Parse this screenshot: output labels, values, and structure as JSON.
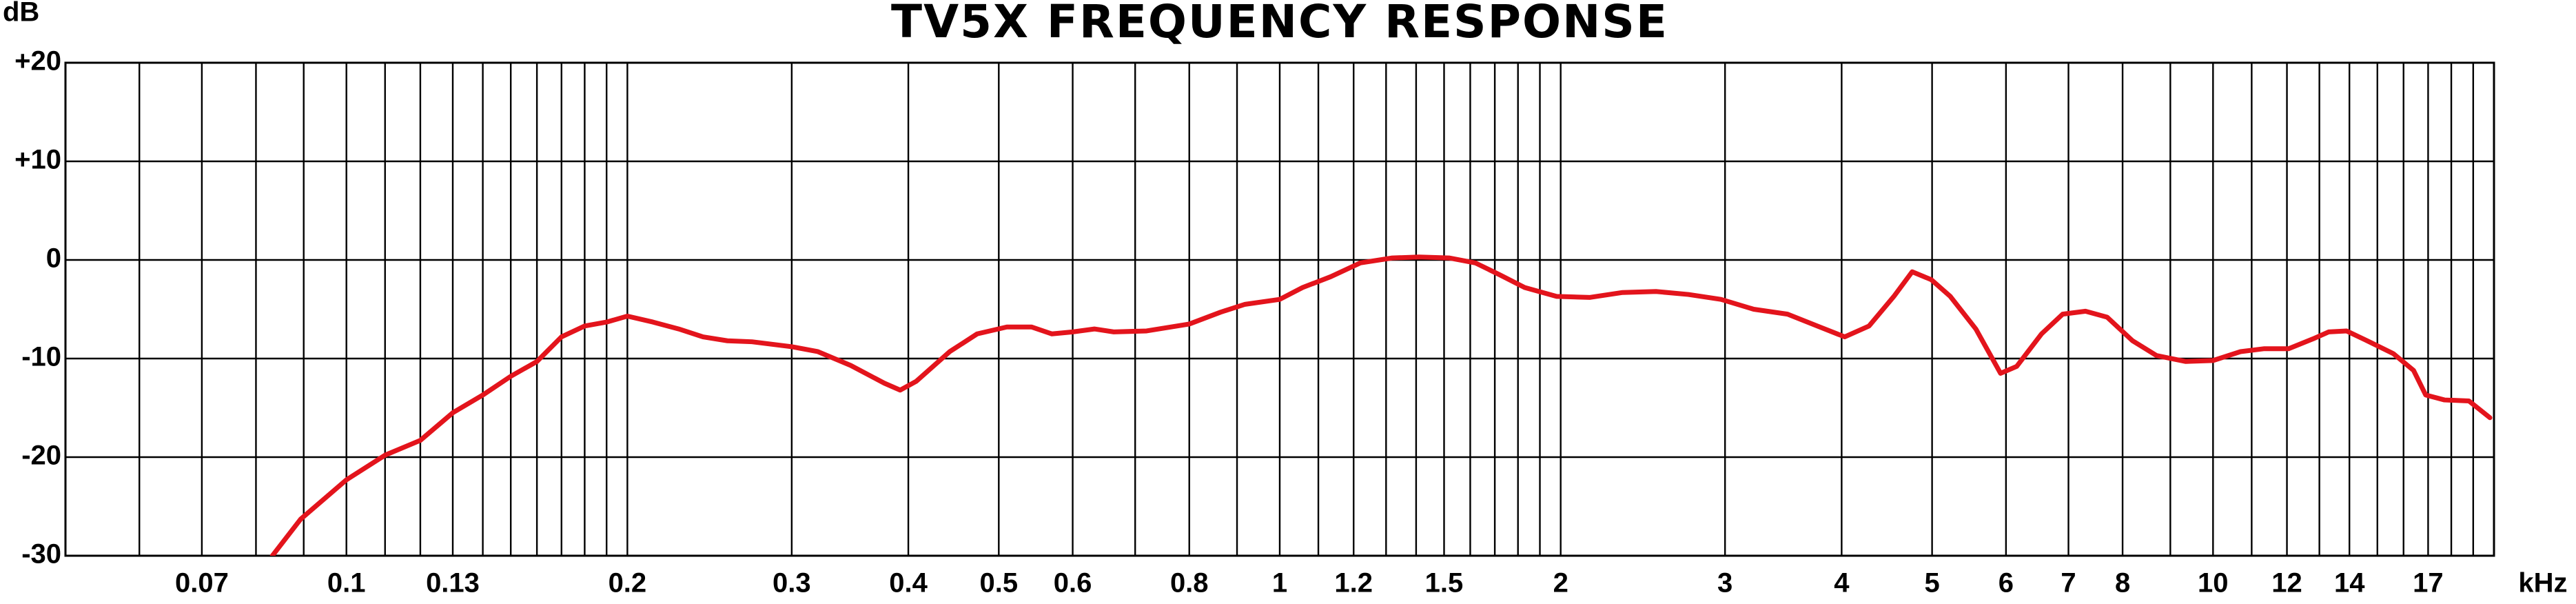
{
  "chart_data": {
    "type": "line",
    "title": "TV5X FREQUENCY RESPONSE",
    "y_label": "dB",
    "x_label": "kHz",
    "xscale": "log",
    "xlim": [
      0.05,
      20
    ],
    "ylim": [
      -30,
      20
    ],
    "xticks": [
      0.07,
      0.1,
      0.13,
      0.2,
      0.3,
      0.4,
      0.5,
      0.6,
      0.8,
      1,
      1.2,
      1.5,
      2,
      3,
      4,
      5,
      6,
      7,
      8,
      10,
      12,
      14,
      17
    ],
    "xgrid": [
      0.06,
      0.07,
      0.08,
      0.09,
      0.1,
      0.11,
      0.12,
      0.13,
      0.14,
      0.15,
      0.16,
      0.17,
      0.18,
      0.19,
      0.2,
      0.3,
      0.4,
      0.5,
      0.6,
      0.7,
      0.8,
      0.9,
      1,
      1.1,
      1.2,
      1.3,
      1.4,
      1.5,
      1.6,
      1.7,
      1.8,
      1.9,
      2,
      3,
      4,
      5,
      6,
      7,
      8,
      9,
      10,
      11,
      12,
      13,
      14,
      15,
      16,
      17,
      18,
      19
    ],
    "yticks": [
      {
        "value": 20,
        "label": "+20"
      },
      {
        "value": 10,
        "label": "+10"
      },
      0,
      -10,
      -20,
      -30
    ],
    "grid": true,
    "x": [
      0.0833,
      0.0893,
      0.1,
      0.11,
      0.12,
      0.13,
      0.14,
      0.15,
      0.16,
      0.17,
      0.18,
      0.19,
      0.2,
      0.213,
      0.227,
      0.241,
      0.256,
      0.272,
      0.3,
      0.32,
      0.347,
      0.377,
      0.392,
      0.408,
      0.443,
      0.474,
      0.51,
      0.542,
      0.57,
      0.6,
      0.633,
      0.664,
      0.72,
      0.8,
      0.864,
      0.918,
      1,
      1.058,
      1.134,
      1.22,
      1.32,
      1.41,
      1.52,
      1.62,
      1.72,
      1.83,
      1.98,
      2.15,
      2.33,
      2.53,
      2.74,
      2.97,
      3.22,
      3.5,
      3.79,
      4.03,
      4.28,
      4.55,
      4.76,
      4.99,
      5.23,
      5.57,
      5.92,
      6.16,
      6.55,
      6.9,
      7.3,
      7.7,
      8.2,
      8.7,
      9.35,
      10,
      10.7,
      11.35,
      12.05,
      12.8,
      13.3,
      13.9,
      14.7,
      15.6,
      16.4,
      16.9,
      17.7,
      18.8,
      19.8
    ],
    "series": [
      {
        "color": "#e3141c",
        "values": [
          -30,
          -26.3,
          -22.3,
          -19.8,
          -18.3,
          -15.5,
          -13.7,
          -11.8,
          -10.3,
          -7.8,
          -6.7,
          -6.3,
          -5.7,
          -6.3,
          -7,
          -7.8,
          -8.2,
          -8.3,
          -8.8,
          -9.3,
          -10.7,
          -12.5,
          -13.2,
          -12.3,
          -9.3,
          -7.5,
          -6.8,
          -6.8,
          -7.5,
          -7.3,
          -7,
          -7.3,
          -7.2,
          -6.5,
          -5.3,
          -4.5,
          -4,
          -2.8,
          -1.7,
          -0.3,
          0.2,
          0.3,
          0.2,
          -0.3,
          -1.5,
          -2.8,
          -3.7,
          -3.8,
          -3.3,
          -3.2,
          -3.5,
          -4,
          -5,
          -5.5,
          -6.8,
          -7.8,
          -6.7,
          -3.7,
          -1.2,
          -2,
          -3.7,
          -7,
          -11.5,
          -10.8,
          -7.5,
          -5.5,
          -5.2,
          -5.8,
          -8.2,
          -9.7,
          -10.3,
          -10.2,
          -9.3,
          -9,
          -9,
          -8,
          -7.3,
          -7.2,
          -8.3,
          -9.5,
          -11.2,
          -13.7,
          -14.2,
          -14.3,
          -16
        ]
      }
    ]
  }
}
